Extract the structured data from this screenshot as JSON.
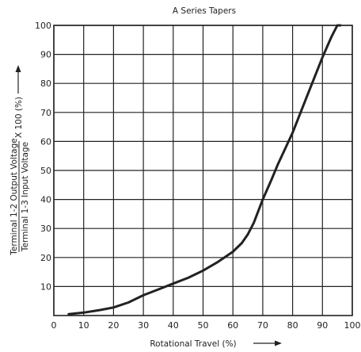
{
  "chart_data": {
    "type": "line",
    "title": "A Series Tapers",
    "xlabel": "Rotational Travel (%)",
    "ylabel_numerator": "Terminal 1-2 Output Voltage",
    "ylabel_denominator": "Terminal 1-3 Input Voltage",
    "ylabel_suffix": "X 100 (%)",
    "xlim": [
      0,
      100
    ],
    "ylim": [
      0,
      100
    ],
    "x_ticks": [
      0,
      10,
      20,
      30,
      40,
      50,
      60,
      70,
      80,
      90,
      100
    ],
    "y_ticks": [
      10,
      20,
      30,
      40,
      50,
      60,
      70,
      80,
      90,
      100
    ],
    "grid": true,
    "series": [
      {
        "color": "#222222",
        "x": [
          5,
          10,
          15,
          20,
          25,
          30,
          35,
          40,
          45,
          50,
          55,
          60,
          63,
          65,
          67,
          70,
          73,
          75,
          80,
          85,
          90,
          93,
          95,
          96
        ],
        "y": [
          0.5,
          1,
          1.8,
          2.8,
          4.5,
          7,
          9,
          11,
          13,
          15.5,
          18.5,
          22,
          25,
          28,
          32,
          40,
          47,
          52,
          63,
          76,
          89,
          96,
          100,
          100
        ]
      }
    ]
  }
}
